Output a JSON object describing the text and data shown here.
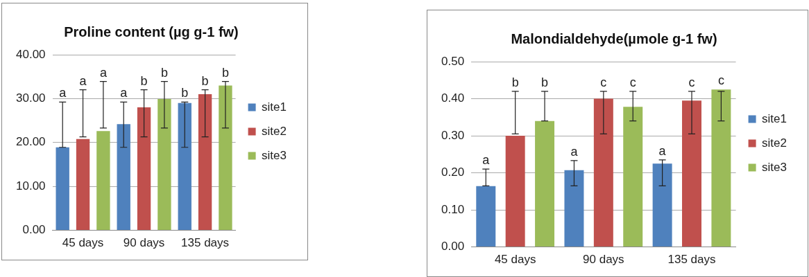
{
  "chart_data": [
    {
      "type": "bar",
      "title": "Proline content (µg g-1 fw)",
      "categories": [
        "45 days",
        "90 days",
        "135 days"
      ],
      "ylim": [
        0,
        40
      ],
      "yticks": [
        {
          "value": 0,
          "label": "0.00"
        },
        {
          "value": 10,
          "label": "10.00"
        },
        {
          "value": 20,
          "label": "20.00"
        },
        {
          "value": 30,
          "label": "30.00"
        },
        {
          "value": 40,
          "label": "40.00"
        }
      ],
      "grid": "y",
      "legend": "right",
      "series": [
        {
          "name": "site1",
          "color": "#4f81bd",
          "values": [
            18.9,
            24.2,
            29.0
          ],
          "errors": [
            [
              18.9,
              29.2
            ],
            [
              18.9,
              29.2
            ],
            [
              18.9,
              29.2
            ]
          ]
        },
        {
          "name": "site2",
          "color": "#c0504d",
          "values": [
            20.8,
            28.0,
            31.0
          ],
          "errors": [
            [
              21.3,
              32
            ],
            [
              21.3,
              32
            ],
            [
              21.3,
              32
            ]
          ]
        },
        {
          "name": "site3",
          "color": "#9bbb59",
          "values": [
            22.6,
            29.9,
            33.0
          ],
          "errors": [
            [
              23.3,
              33.9
            ],
            [
              23.3,
              33.9
            ],
            [
              23.3,
              33.9
            ]
          ]
        }
      ],
      "annotations": [
        "a",
        "a",
        "a",
        "a",
        "b",
        "b",
        "b",
        "b",
        "b"
      ]
    },
    {
      "type": "bar",
      "title": "Malondialdehyde(µmole g-1 fw)",
      "categories": [
        "45 days",
        "90 days",
        "135 days"
      ],
      "ylim": [
        0,
        0.5
      ],
      "yticks": [
        {
          "value": 0,
          "label": "0.00"
        },
        {
          "value": 0.1,
          "label": "0.10"
        },
        {
          "value": 0.2,
          "label": "0.20"
        },
        {
          "value": 0.3,
          "label": "0.30"
        },
        {
          "value": 0.4,
          "label": "0.40"
        },
        {
          "value": 0.5,
          "label": "0.50"
        }
      ],
      "grid": "y",
      "legend": "right",
      "series": [
        {
          "name": "site1",
          "color": "#4f81bd",
          "values": [
            0.164,
            0.207,
            0.225
          ],
          "errors": [
            [
              0.165,
              0.21
            ],
            [
              0.165,
              0.233
            ],
            [
              0.165,
              0.235
            ]
          ]
        },
        {
          "name": "site2",
          "color": "#c0504d",
          "values": [
            0.3,
            0.4,
            0.395
          ],
          "errors": [
            [
              0.305,
              0.42
            ],
            [
              0.305,
              0.42
            ],
            [
              0.305,
              0.42
            ]
          ]
        },
        {
          "name": "site3",
          "color": "#9bbb59",
          "values": [
            0.34,
            0.378,
            0.425
          ],
          "errors": [
            [
              0.34,
              0.42
            ],
            [
              0.34,
              0.42
            ],
            [
              0.34,
              0.42
            ]
          ]
        }
      ],
      "annotations": [
        "a",
        "b",
        "b",
        "a",
        "c",
        "c",
        "a",
        "c",
        "c"
      ]
    }
  ]
}
